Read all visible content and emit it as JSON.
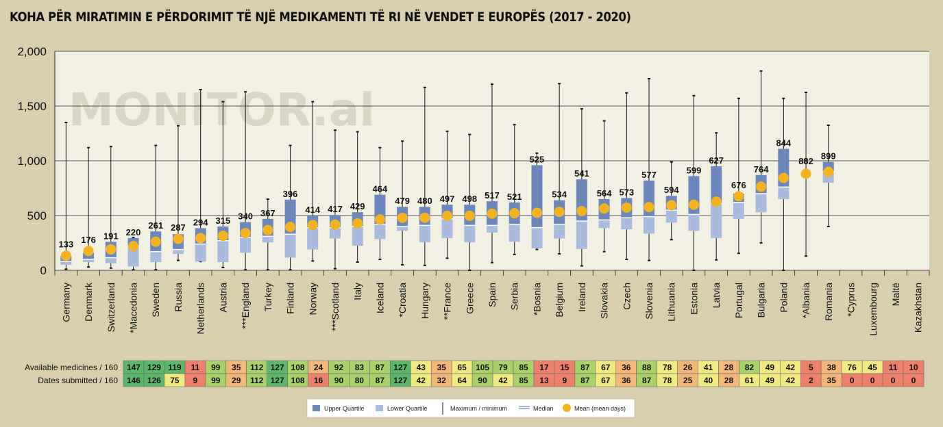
{
  "title": "KOHA PËR MIRATIMIN E PËRDORIMIT TË NJË MEDIKAMENTI TË RI NË VENDET E EUROPËS (2017 - 2020)",
  "watermark": "MONITOR.al",
  "colors": {
    "upper_quartile": "#6c87bb",
    "lower_quartile": "#a9bbdf",
    "mean": "#f5b41f",
    "plot_bg": "#f2efe3",
    "green": "#5cb86a",
    "lightgreen": "#a9d26a",
    "yellow": "#f1ea80",
    "orange": "#f4b77a",
    "red": "#ee7f6c"
  },
  "chart_data": {
    "type": "box",
    "ylim": [
      0,
      2000
    ],
    "yticks": [
      0,
      500,
      1000,
      1500,
      2000
    ],
    "ytick_labels": [
      "0",
      "500",
      "1,000",
      "1,500",
      "2,000"
    ],
    "grid": true,
    "categories": [
      "Germany",
      "Denmark",
      "Switzerland",
      "*Macedonia",
      "Sweden",
      "Russia",
      "Netherlands",
      "Austria",
      "***England",
      "Turkey",
      "Finland",
      "Norway",
      "***Scotland",
      "Italy",
      "Iceland",
      "*Croatia",
      "Hungary",
      "**France",
      "Greece",
      "Spain",
      "Serbia",
      "*Bosnia",
      "Belgium",
      "Ireland",
      "Slovakia",
      "Czech",
      "Slovenia",
      "Lithuania",
      "Estonia",
      "Latvia",
      "Portugal",
      "Bulgaria",
      "Poland",
      "*Albania",
      "Romania",
      "*Cyprus",
      "Luxembourg",
      "Maltë",
      "Kazakhstan"
    ],
    "mean": [
      133,
      176,
      191,
      220,
      261,
      287,
      294,
      315,
      340,
      367,
      396,
      414,
      417,
      429,
      464,
      479,
      480,
      497,
      498,
      517,
      521,
      525,
      534,
      541,
      564,
      573,
      577,
      594,
      599,
      627,
      676,
      764,
      844,
      882,
      899,
      null,
      null,
      null,
      null
    ],
    "mean_labels": [
      "133",
      "176",
      "191",
      "220",
      "261",
      "287",
      "294",
      "315",
      "340",
      "367",
      "396",
      "414",
      "417",
      "429",
      "464",
      "479",
      "480",
      "497",
      "498",
      "517",
      "521",
      "525",
      "534",
      "541",
      "564",
      "573",
      "577",
      "594",
      "599",
      "627",
      "676",
      "764",
      "844",
      "882",
      "899"
    ],
    "min": [
      10,
      30,
      20,
      5,
      5,
      90,
      80,
      25,
      5,
      5,
      5,
      85,
      15,
      75,
      100,
      50,
      45,
      110,
      0,
      70,
      145,
      190,
      150,
      40,
      170,
      100,
      90,
      280,
      0,
      95,
      155,
      250,
      0,
      130,
      400,
      null,
      null,
      null,
      null
    ],
    "q1": [
      50,
      75,
      65,
      35,
      75,
      150,
      80,
      75,
      160,
      255,
      115,
      190,
      290,
      225,
      285,
      360,
      255,
      295,
      255,
      345,
      260,
      200,
      290,
      195,
      385,
      375,
      335,
      435,
      360,
      295,
      470,
      530,
      650,
      null,
      800,
      null,
      null,
      null,
      null
    ],
    "median": [
      80,
      100,
      115,
      220,
      170,
      190,
      240,
      270,
      300,
      310,
      330,
      390,
      390,
      400,
      420,
      400,
      410,
      470,
      410,
      410,
      420,
      390,
      420,
      450,
      460,
      480,
      490,
      550,
      510,
      610,
      620,
      700,
      760,
      null,
      900,
      null,
      null,
      null,
      null
    ],
    "q3": [
      130,
      160,
      260,
      295,
      355,
      330,
      385,
      400,
      440,
      470,
      645,
      500,
      505,
      530,
      690,
      580,
      580,
      600,
      600,
      630,
      620,
      960,
      640,
      830,
      650,
      660,
      820,
      680,
      860,
      950,
      700,
      870,
      1110,
      null,
      990,
      null,
      null,
      null,
      null
    ],
    "max": [
      1350,
      1120,
      1130,
      300,
      1140,
      1320,
      1650,
      1540,
      1630,
      650,
      1140,
      1540,
      1280,
      1265,
      1120,
      1180,
      1670,
      1270,
      1240,
      1700,
      1330,
      1070,
      1705,
      1475,
      1365,
      1620,
      1750,
      990,
      1595,
      1255,
      1570,
      1820,
      1570,
      1625,
      1325,
      null,
      null,
      null,
      null
    ]
  },
  "table": {
    "row1_label": "Available medicines / 160",
    "row2_label": "Dates submitted / 160",
    "available": [
      "147",
      "129",
      "119",
      "11",
      "99",
      "35",
      "112",
      "127",
      "108",
      "24",
      "92",
      "83",
      "87",
      "127",
      "43",
      "35",
      "65",
      "105",
      "79",
      "85",
      "17",
      "15",
      "87",
      "67",
      "36",
      "88",
      "78",
      "26",
      "41",
      "28",
      "82",
      "49",
      "42",
      "5",
      "38",
      "76",
      "45",
      "11",
      "10"
    ],
    "submitted": [
      "146",
      "126",
      "75",
      "9",
      "99",
      "29",
      "112",
      "127",
      "108",
      "16",
      "90",
      "80",
      "87",
      "127",
      "42",
      "32",
      "64",
      "90",
      "42",
      "85",
      "13",
      "9",
      "87",
      "67",
      "36",
      "87",
      "78",
      "25",
      "40",
      "28",
      "61",
      "49",
      "42",
      "2",
      "35",
      "0",
      "0",
      "0",
      "0"
    ],
    "available_colors": [
      "green",
      "green",
      "green",
      "red",
      "lightgreen",
      "orange",
      "lightgreen",
      "green",
      "lightgreen",
      "orange",
      "lightgreen",
      "lightgreen",
      "lightgreen",
      "green",
      "yellow",
      "orange",
      "yellow",
      "lightgreen",
      "lightgreen",
      "lightgreen",
      "red",
      "red",
      "lightgreen",
      "yellow",
      "orange",
      "lightgreen",
      "yellow",
      "orange",
      "yellow",
      "orange",
      "lightgreen",
      "yellow",
      "yellow",
      "red",
      "orange",
      "yellow",
      "yellow",
      "red",
      "red"
    ],
    "submitted_colors": [
      "green",
      "green",
      "yellow",
      "red",
      "lightgreen",
      "orange",
      "lightgreen",
      "green",
      "lightgreen",
      "red",
      "lightgreen",
      "lightgreen",
      "lightgreen",
      "green",
      "yellow",
      "orange",
      "yellow",
      "lightgreen",
      "yellow",
      "lightgreen",
      "red",
      "red",
      "lightgreen",
      "yellow",
      "orange",
      "lightgreen",
      "yellow",
      "orange",
      "yellow",
      "orange",
      "yellow",
      "yellow",
      "yellow",
      "red",
      "orange",
      "red",
      "red",
      "red",
      "red"
    ]
  },
  "legend": {
    "upper_quartile": "Upper Quartile",
    "lower_quartile": "Lower Quartile",
    "max_min": "Maximum / minimum",
    "median": "Median",
    "mean": "Mean (mean days)"
  }
}
